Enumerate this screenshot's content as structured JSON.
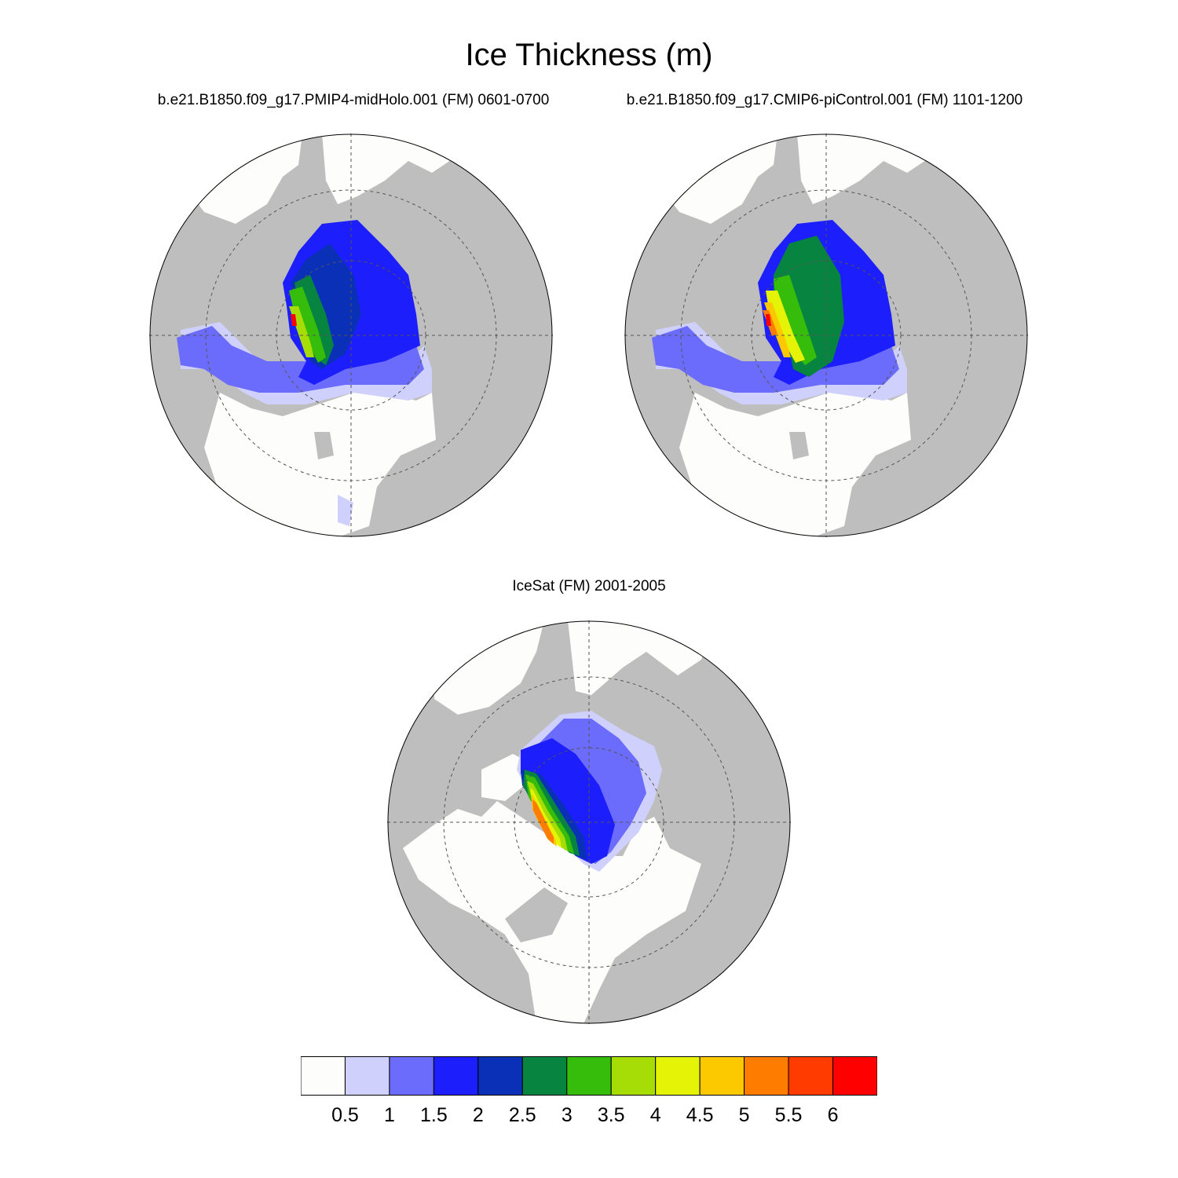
{
  "title": "Ice Thickness (m)",
  "panels": [
    {
      "title": "b.e21.B1850.f09_g17.PMIP4-midHolo.001 (FM) 0601-0700"
    },
    {
      "title": "b.e21.B1850.f09_g17.CMIP6-piControl.001 (FM) 1101-1200"
    },
    {
      "title": "IceSat (FM) 2001-2005"
    }
  ],
  "colorbar": {
    "labels": [
      "0.5",
      "1",
      "1.5",
      "2",
      "2.5",
      "3",
      "3.5",
      "4",
      "4.5",
      "5",
      "5.5",
      "6"
    ],
    "colors": [
      "#fdfdfb",
      "#cfd0fb",
      "#6b6cfb",
      "#1c1efb",
      "#0a30b8",
      "#078440",
      "#36bc0a",
      "#a7dd06",
      "#e5f306",
      "#fcc900",
      "#fe7d00",
      "#ff3b00",
      "#ff0000"
    ]
  },
  "map_colors": {
    "land": "#bebebe",
    "ocean": "#fdfdfb",
    "outline": "#000000"
  }
}
